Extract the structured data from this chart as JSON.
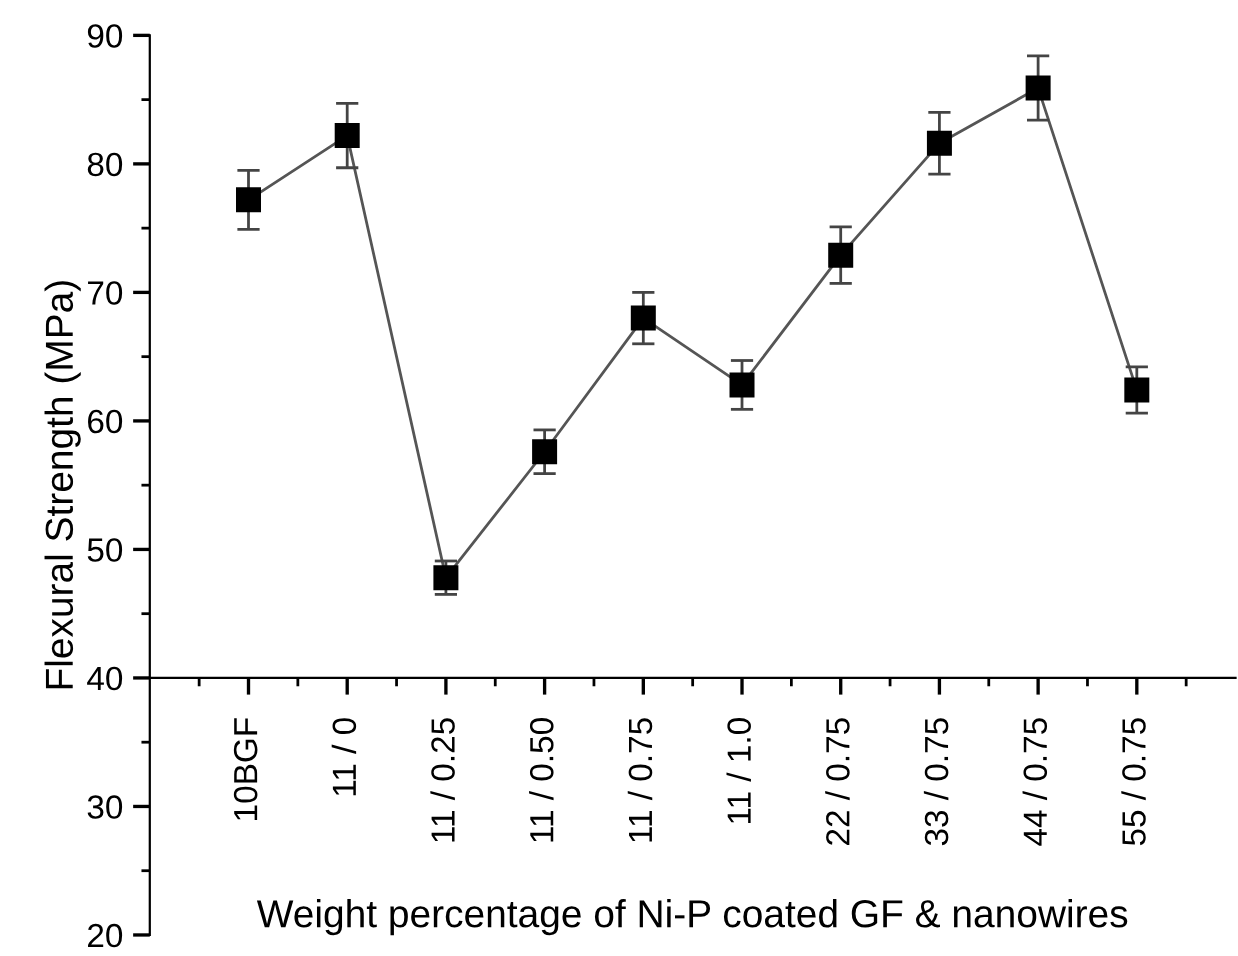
{
  "chart_data": {
    "type": "line",
    "xlabel": "Weight percentage of Ni-P coated GF & nanowires",
    "ylabel": "Flexural Strength (MPa)",
    "categories": [
      "10BGF",
      "11 / 0",
      "11 / 0.25",
      "11 / 0.50",
      "11 / 0.75",
      "11 / 1.0",
      "22 / 0.75",
      "33 / 0.75",
      "44 / 0.75",
      "55 / 0.75"
    ],
    "series": [
      {
        "color": "#000000",
        "values": [
          77.2,
          82.2,
          47.8,
          57.6,
          68.0,
          62.8,
          72.9,
          81.6,
          85.9,
          62.4
        ],
        "errors": [
          2.3,
          2.5,
          1.3,
          1.7,
          2.0,
          1.9,
          2.2,
          2.4,
          2.5,
          1.8
        ]
      }
    ],
    "ylim": [
      20,
      90
    ],
    "yticks": [
      20,
      30,
      40,
      50,
      60,
      70,
      80,
      90
    ],
    "marker": "square",
    "line_style": "solid",
    "grid": false,
    "legend": false
  }
}
